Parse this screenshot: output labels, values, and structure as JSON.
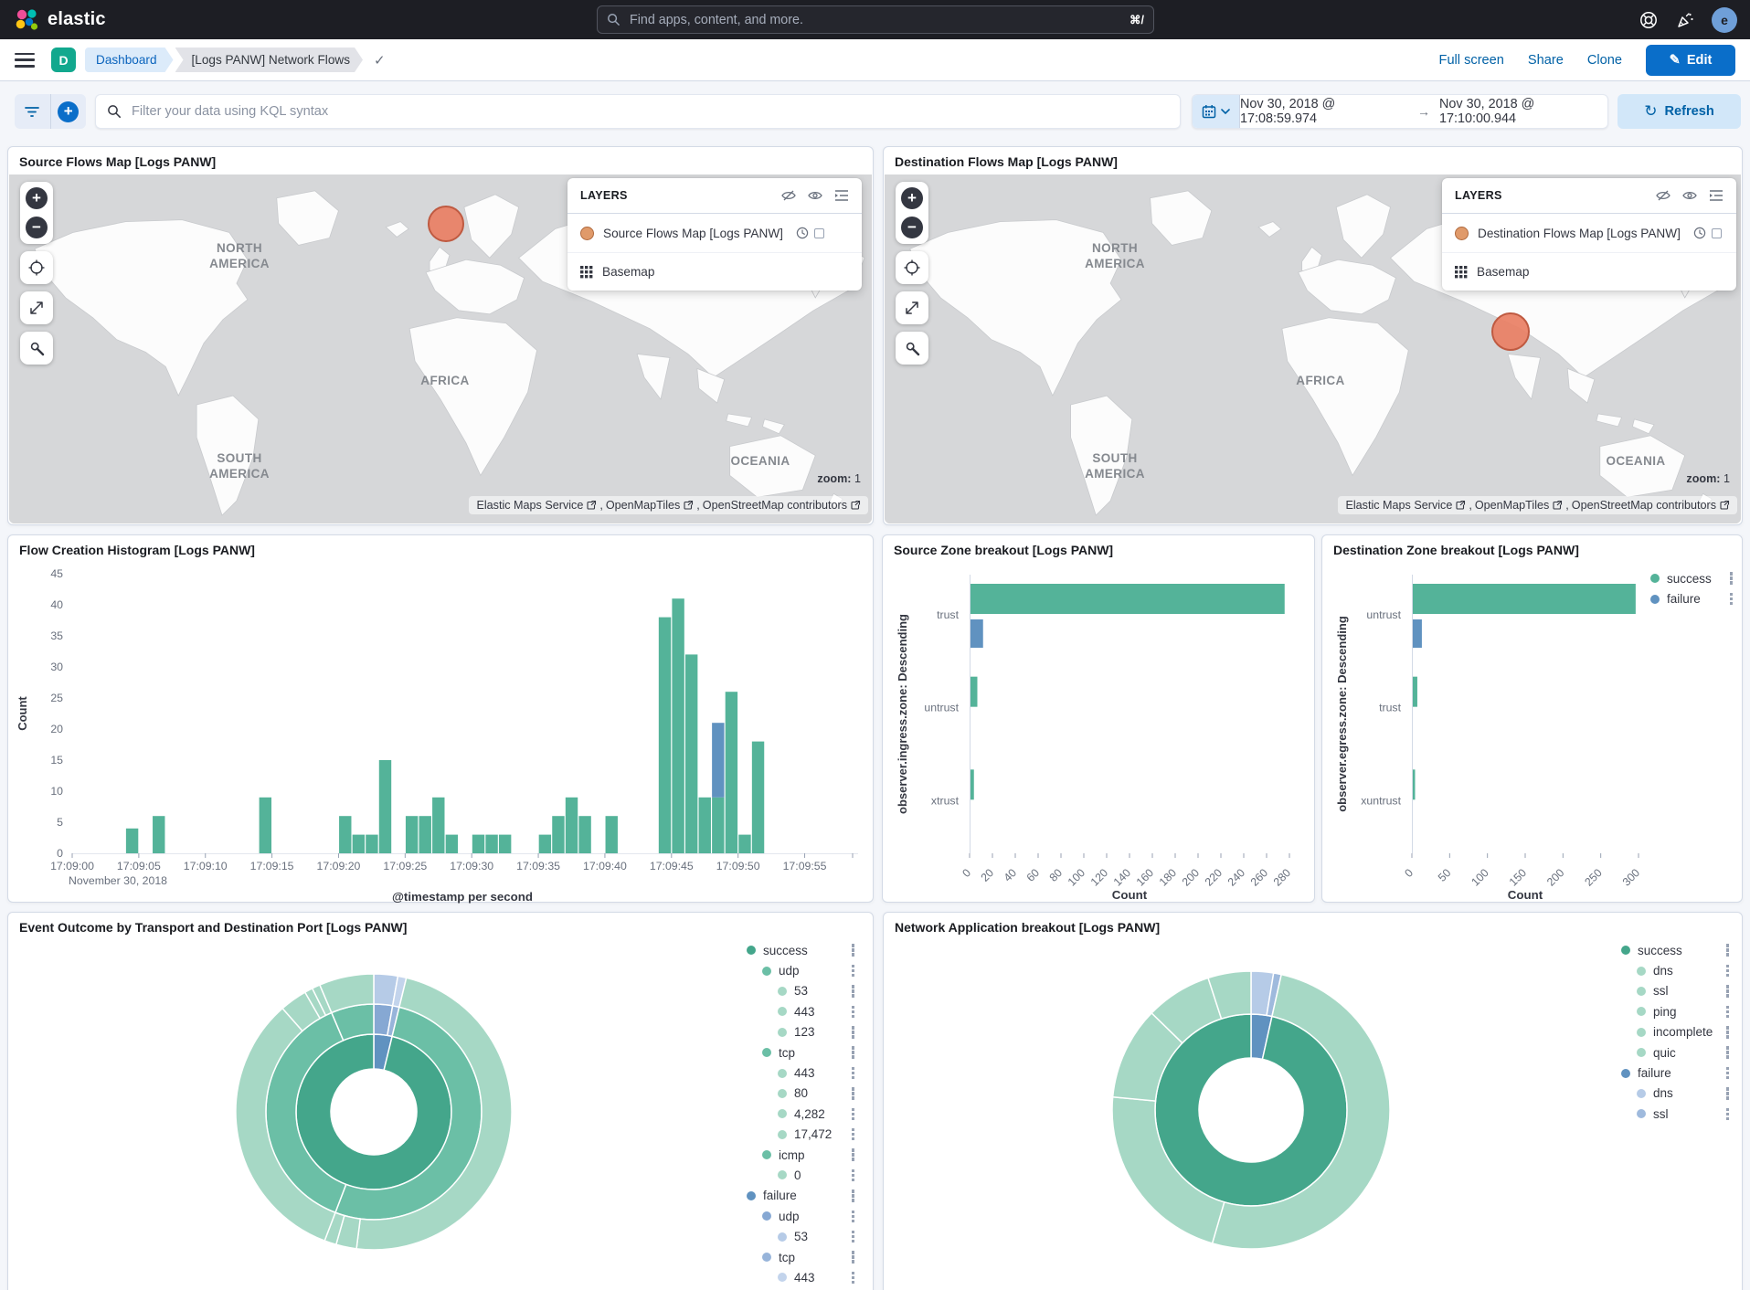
{
  "header": {
    "brand": "elastic",
    "search_placeholder": "Find apps, content, and more.",
    "search_shortcut": "⌘/",
    "avatar_initial": "e"
  },
  "nav": {
    "app_initial": "D",
    "breadcrumb_root": "Dashboard",
    "breadcrumb_current": "[Logs PANW] Network Flows",
    "action_fullscreen": "Full screen",
    "action_share": "Share",
    "action_clone": "Clone",
    "edit_label": "Edit"
  },
  "querybar": {
    "kql_placeholder": "Filter your data using KQL syntax",
    "date_from": "Nov 30, 2018 @ 17:08:59.974",
    "date_to": "Nov 30, 2018 @ 17:10:00.944",
    "refresh_label": "Refresh"
  },
  "maps": {
    "source": {
      "title": "Source Flows Map [Logs PANW]",
      "layers_heading": "LAYERS",
      "layer1": "Source Flows Map [Logs PANW]",
      "layer2": "Basemap",
      "zoom_label": "zoom:",
      "zoom_value": "1",
      "attribution": [
        "Elastic Maps Service",
        "OpenMapTiles",
        "OpenStreetMap contributors"
      ]
    },
    "dest": {
      "title": "Destination Flows Map [Logs PANW]",
      "layers_heading": "LAYERS",
      "layer1": "Destination Flows Map [Logs PANW]",
      "layer2": "Basemap",
      "zoom_label": "zoom:",
      "zoom_value": "1",
      "attribution": [
        "Elastic Maps Service",
        "OpenMapTiles",
        "OpenStreetMap contributors"
      ]
    },
    "continent_labels": {
      "north": "NORTH",
      "america1": "AMERICA",
      "africa": "AFRICA",
      "south": "SOUTH",
      "america2": "AMERICA",
      "oceania": "OCEANIA"
    },
    "marker_fill": "#e97f64",
    "marker_stroke": "#bf5a41"
  },
  "chart_data": [
    {
      "id": "flow_histogram",
      "type": "bar",
      "title": "Flow Creation Histogram [Logs PANW]",
      "xlabel": "@timestamp per second",
      "ylabel": "Count",
      "x_context_label": "November 30, 2018",
      "x_ticks": [
        "17:09:00",
        "17:09:05",
        "17:09:10",
        "17:09:15",
        "17:09:20",
        "17:09:25",
        "17:09:30",
        "17:09:35",
        "17:09:40",
        "17:09:45",
        "17:09:50",
        "17:09:55"
      ],
      "x_tick_interval_s": 5,
      "x_span_s": 58.6,
      "ylim": [
        0,
        45
      ],
      "y_tick_step": 5,
      "series_colors": {
        "success": "#54b399",
        "failure": "#6092c0"
      },
      "bars": [
        {
          "second": 4,
          "success": 4
        },
        {
          "second": 6,
          "success": 6
        },
        {
          "second": 14,
          "success": 9
        },
        {
          "second": 20,
          "success": 6
        },
        {
          "second": 21,
          "success": 3
        },
        {
          "second": 22,
          "success": 3
        },
        {
          "second": 23,
          "success": 15
        },
        {
          "second": 25,
          "success": 6
        },
        {
          "second": 26,
          "success": 6
        },
        {
          "second": 27,
          "success": 9
        },
        {
          "second": 28,
          "success": 3
        },
        {
          "second": 30,
          "success": 3
        },
        {
          "second": 31,
          "success": 3
        },
        {
          "second": 32,
          "success": 3
        },
        {
          "second": 35,
          "success": 3
        },
        {
          "second": 36,
          "success": 6
        },
        {
          "second": 37,
          "success": 9
        },
        {
          "second": 38,
          "success": 6
        },
        {
          "second": 40,
          "success": 6
        },
        {
          "second": 44,
          "success": 38
        },
        {
          "second": 45,
          "success": 41
        },
        {
          "second": 46,
          "success": 32
        },
        {
          "second": 47,
          "success": 9
        },
        {
          "second": 48,
          "success": 9,
          "failure": 12
        },
        {
          "second": 49,
          "success": 26
        },
        {
          "second": 50,
          "success": 3
        },
        {
          "second": 51,
          "success": 18
        }
      ]
    },
    {
      "id": "source_zone",
      "type": "bar-horizontal",
      "title": "Source Zone breakout [Logs PANW]",
      "axis_label": "observer.ingress.zone: Descending",
      "xlabel": "Count",
      "categories": [
        "trust",
        "untrust",
        "xtrust"
      ],
      "series": [
        {
          "name": "success",
          "color": "#54b399",
          "values": [
            275,
            6,
            3
          ]
        },
        {
          "name": "failure",
          "color": "#6092c0",
          "values": [
            11,
            0,
            0
          ]
        }
      ],
      "xlim": [
        0,
        280
      ],
      "x_tick_step": 20,
      "show_legend": false
    },
    {
      "id": "dest_zone",
      "type": "bar-horizontal",
      "title": "Destination Zone breakout [Logs PANW]",
      "axis_label": "observer.egress.zone: Descending",
      "xlabel": "Count",
      "categories": [
        "untrust",
        "trust",
        "xuntrust"
      ],
      "series": [
        {
          "name": "success",
          "color": "#54b399",
          "values": [
            295,
            6,
            3
          ]
        },
        {
          "name": "failure",
          "color": "#6092c0",
          "values": [
            12,
            0,
            0
          ]
        }
      ],
      "xlim": [
        0,
        300
      ],
      "x_tick_step": 50,
      "show_legend": true,
      "legend": [
        {
          "label": "success",
          "level": 0,
          "color": "#54b399"
        },
        {
          "label": "failure",
          "level": 0,
          "color": "#6092c0"
        }
      ]
    },
    {
      "id": "event_outcome",
      "type": "sunburst",
      "title": "Event Outcome by Transport and Destination Port [Logs PANW]",
      "unit": "percent_of_total_estimated",
      "tree": [
        {
          "name": "failure",
          "value": 3.8,
          "color": "#6092c0",
          "children": [
            {
              "name": "udp",
              "value": 2.8,
              "color": "#86a8d3",
              "children": [
                {
                  "name": "53",
                  "value": 2.8,
                  "color": "#b6cbe7"
                }
              ]
            },
            {
              "name": "tcp",
              "value": 1.0,
              "color": "#97b4da",
              "children": [
                {
                  "name": "443",
                  "value": 1.0,
                  "color": "#c3d4ec"
                }
              ]
            }
          ]
        },
        {
          "name": "success",
          "value": 96.2,
          "color": "#44a68b",
          "children": [
            {
              "name": "udp",
              "value": 52.0,
              "color": "#6bbfa6",
              "children": [
                {
                  "name": "53",
                  "value": 48.2,
                  "color": "#a6d8c5"
                },
                {
                  "name": "443",
                  "value": 2.4,
                  "color": "#a6d8c5"
                },
                {
                  "name": "123",
                  "value": 1.4,
                  "color": "#a6d8c5"
                }
              ]
            },
            {
              "name": "tcp",
              "value": 37.8,
              "color": "#6bbfa6",
              "children": [
                {
                  "name": "443",
                  "value": 32.7,
                  "color": "#a6d8c5"
                },
                {
                  "name": "80",
                  "value": 3.2,
                  "color": "#a6d8c5"
                },
                {
                  "name": "4,282",
                  "value": 0.95,
                  "color": "#a6d8c5"
                },
                {
                  "name": "17,472",
                  "value": 0.95,
                  "color": "#a6d8c5"
                }
              ]
            },
            {
              "name": "icmp",
              "value": 6.4,
              "color": "#6bbfa6",
              "children": [
                {
                  "name": "0",
                  "value": 6.4,
                  "color": "#a6d8c5"
                }
              ]
            }
          ]
        }
      ],
      "legend": [
        {
          "label": "success",
          "level": 0,
          "color": "#44a68b"
        },
        {
          "label": "udp",
          "level": 1,
          "color": "#6bbfa6"
        },
        {
          "label": "53",
          "level": 2,
          "color": "#a6d8c5"
        },
        {
          "label": "443",
          "level": 2,
          "color": "#a6d8c5"
        },
        {
          "label": "123",
          "level": 2,
          "color": "#a6d8c5"
        },
        {
          "label": "tcp",
          "level": 1,
          "color": "#6bbfa6"
        },
        {
          "label": "443",
          "level": 2,
          "color": "#a6d8c5"
        },
        {
          "label": "80",
          "level": 2,
          "color": "#a6d8c5"
        },
        {
          "label": "4,282",
          "level": 2,
          "color": "#a6d8c5"
        },
        {
          "label": "17,472",
          "level": 2,
          "color": "#a6d8c5"
        },
        {
          "label": "icmp",
          "level": 1,
          "color": "#6bbfa6"
        },
        {
          "label": "0",
          "level": 2,
          "color": "#a6d8c5"
        },
        {
          "label": "failure",
          "level": 0,
          "color": "#6092c0"
        },
        {
          "label": "udp",
          "level": 1,
          "color": "#86a8d3"
        },
        {
          "label": "53",
          "level": 2,
          "color": "#b6cbe7"
        },
        {
          "label": "tcp",
          "level": 1,
          "color": "#97b4da"
        },
        {
          "label": "443",
          "level": 2,
          "color": "#c3d4ec"
        }
      ]
    },
    {
      "id": "network_application",
      "type": "sunburst",
      "title": "Network Application breakout [Logs PANW]",
      "unit": "percent_of_total_estimated",
      "tree": [
        {
          "name": "failure",
          "value": 3.5,
          "color": "#6092c0",
          "children": [
            {
              "name": "dns",
              "value": 2.6,
              "color": "#b6cbe7"
            },
            {
              "name": "ssl",
              "value": 0.9,
              "color": "#9fbadd"
            }
          ]
        },
        {
          "name": "success",
          "value": 96.5,
          "color": "#44a68b",
          "children": [
            {
              "name": "dns",
              "value": 51.0,
              "color": "#a6d8c5"
            },
            {
              "name": "ssl",
              "value": 22.0,
              "color": "#a6d8c5"
            },
            {
              "name": "ping",
              "value": 10.8,
              "color": "#a6d8c5"
            },
            {
              "name": "incomplete",
              "value": 7.7,
              "color": "#a6d8c5"
            },
            {
              "name": "quic",
              "value": 5.0,
              "color": "#a6d8c5"
            }
          ]
        }
      ],
      "legend": [
        {
          "label": "success",
          "level": 0,
          "color": "#44a68b"
        },
        {
          "label": "dns",
          "level": 1,
          "color": "#a6d8c5"
        },
        {
          "label": "ssl",
          "level": 1,
          "color": "#a6d8c5"
        },
        {
          "label": "ping",
          "level": 1,
          "color": "#a6d8c5"
        },
        {
          "label": "incomplete",
          "level": 1,
          "color": "#a6d8c5"
        },
        {
          "label": "quic",
          "level": 1,
          "color": "#a6d8c5"
        },
        {
          "label": "failure",
          "level": 0,
          "color": "#6092c0"
        },
        {
          "label": "dns",
          "level": 1,
          "color": "#b6cbe7"
        },
        {
          "label": "ssl",
          "level": 1,
          "color": "#9fbadd"
        }
      ]
    }
  ]
}
